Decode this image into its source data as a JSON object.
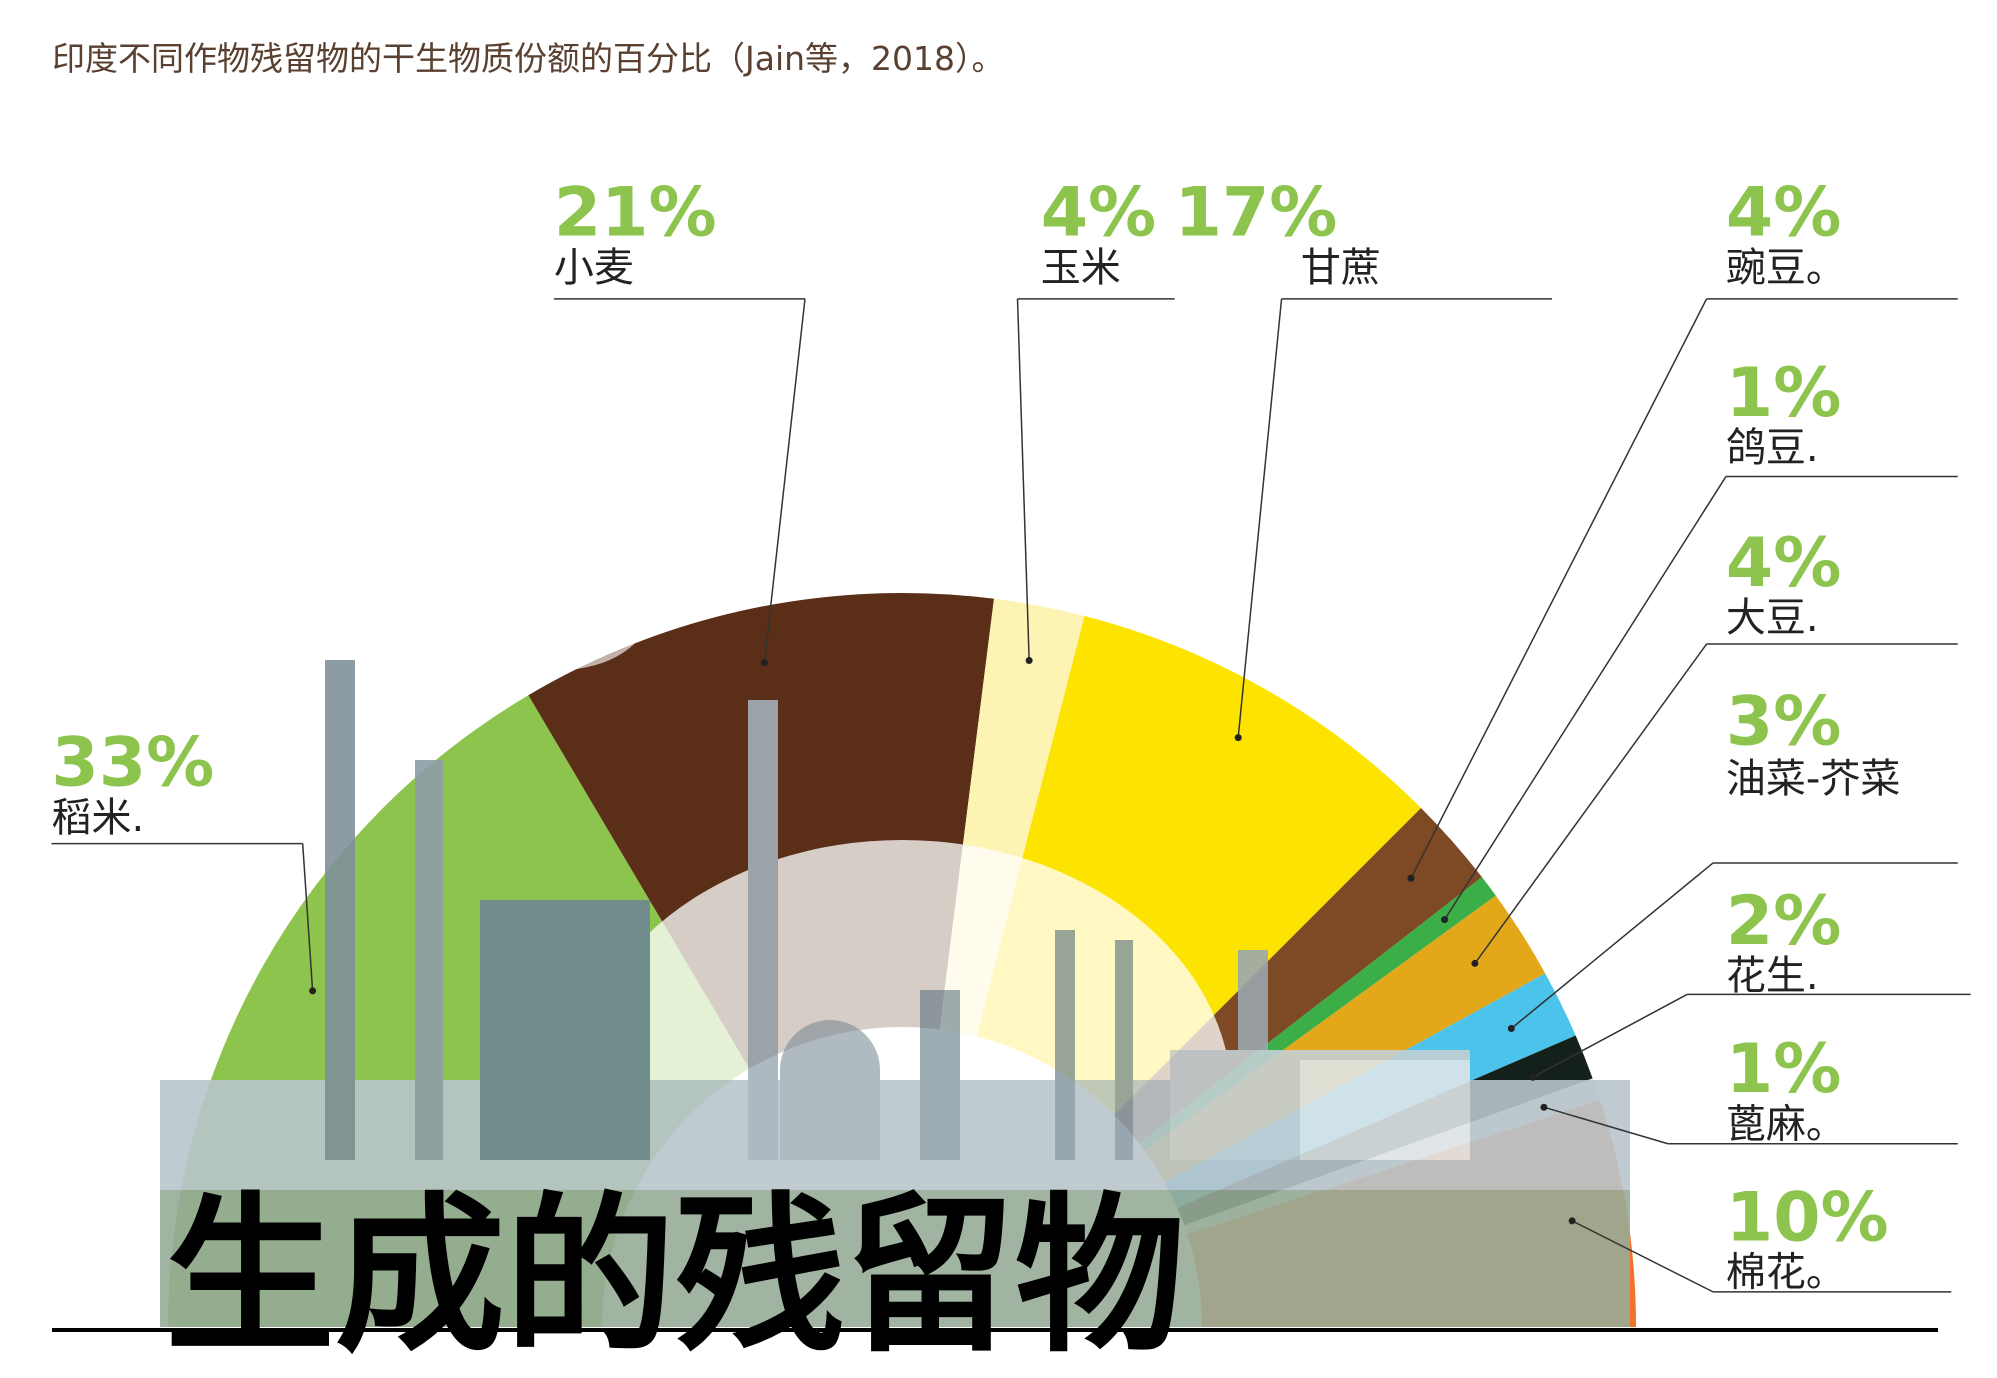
{
  "chart_data": {
    "type": "pie",
    "caption": "印度不同作物残留物的干生物质份额的百分比（Jain等，2018）。",
    "title": "生成的残留物",
    "categories": [
      "稻米.",
      "小麦",
      "玉米",
      "甘蔗",
      "豌豆。",
      "鸽豆.",
      "大豆.",
      "油菜-芥菜",
      "花生.",
      "蓖麻。",
      "棉花。"
    ],
    "values": [
      33,
      21,
      4,
      17,
      4,
      1,
      4,
      3,
      2,
      1,
      10
    ],
    "value_labels": [
      "33%",
      "21%",
      "4%",
      "17%",
      "4%",
      "1%",
      "4%",
      "3%",
      "2%",
      "1%",
      "10%"
    ],
    "colors": [
      "#8dc44e",
      "#5a2e17",
      "#fdf3b2",
      "#fde300",
      "#7e4a25",
      "#3cae48",
      "#e3a81a",
      "#4cc3ea",
      "#14201a",
      "#dddddd",
      "#f0732a"
    ]
  }
}
